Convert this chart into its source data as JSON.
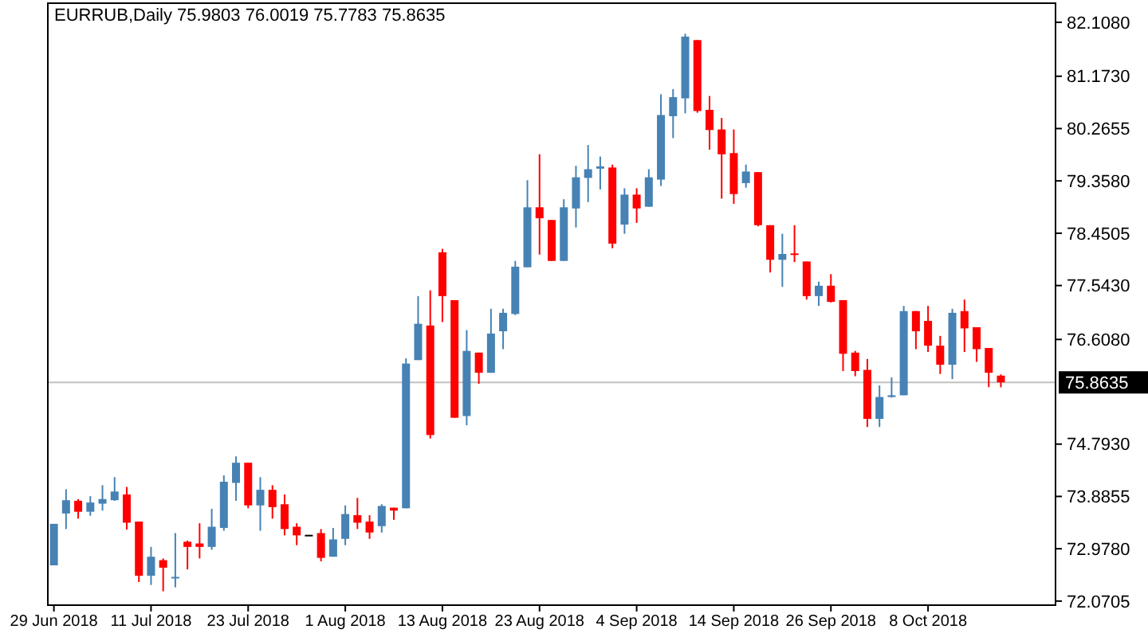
{
  "chart_data": {
    "type": "candlestick",
    "title": "EURRUB,Daily  75.9803 76.0019 75.7783 75.8635",
    "categories": [
      "29 Jun 2018",
      null,
      null,
      null,
      null,
      null,
      null,
      null,
      "11 Jul 2018",
      null,
      null,
      null,
      null,
      null,
      null,
      null,
      "23 Jul 2018",
      null,
      null,
      null,
      null,
      null,
      null,
      null,
      "1 Aug 2018",
      null,
      null,
      null,
      null,
      null,
      null,
      null,
      "13 Aug 2018",
      null,
      null,
      null,
      null,
      null,
      null,
      null,
      "23 Aug 2018",
      null,
      null,
      null,
      null,
      null,
      null,
      null,
      "4 Sep 2018",
      null,
      null,
      null,
      null,
      null,
      null,
      null,
      "14 Sep 2018",
      null,
      null,
      null,
      null,
      null,
      null,
      null,
      "26 Sep 2018",
      null,
      null,
      null,
      null,
      null,
      null,
      null,
      "8 Oct 2018",
      null,
      null,
      null,
      null,
      null,
      null
    ],
    "ohlc": [
      [
        72.69,
        73.41,
        72.69,
        73.41
      ],
      [
        73.59,
        74.01,
        73.32,
        73.82
      ],
      [
        73.81,
        73.84,
        73.5,
        73.62
      ],
      [
        73.62,
        73.89,
        73.55,
        73.78
      ],
      [
        73.76,
        74.08,
        73.64,
        73.84
      ],
      [
        73.82,
        74.22,
        73.81,
        73.97
      ],
      [
        73.92,
        74.05,
        73.31,
        73.43
      ],
      [
        73.45,
        73.45,
        72.4,
        72.51
      ],
      [
        72.51,
        73.01,
        72.35,
        72.84
      ],
      [
        72.78,
        72.81,
        72.24,
        72.65
      ],
      [
        72.47,
        73.25,
        72.31,
        72.49
      ],
      [
        73.1,
        73.12,
        72.62,
        73.01
      ],
      [
        73.07,
        73.42,
        72.81,
        73.01
      ],
      [
        73.01,
        73.67,
        72.96,
        73.36
      ],
      [
        73.34,
        74.25,
        73.29,
        74.14
      ],
      [
        74.12,
        74.58,
        73.81,
        74.47
      ],
      [
        74.47,
        74.47,
        73.68,
        73.73
      ],
      [
        73.73,
        74.22,
        73.29,
        74.0
      ],
      [
        74.0,
        74.08,
        73.5,
        73.7
      ],
      [
        73.75,
        73.92,
        73.21,
        73.32
      ],
      [
        73.36,
        73.42,
        73.04,
        73.21
      ],
      [
        73.22,
        73.22,
        73.22,
        73.22
      ],
      [
        73.25,
        73.32,
        72.76,
        72.82
      ],
      [
        72.84,
        73.34,
        72.84,
        73.14
      ],
      [
        73.15,
        73.73,
        73.04,
        73.58
      ],
      [
        73.56,
        73.86,
        73.32,
        73.43
      ],
      [
        73.45,
        73.56,
        73.15,
        73.26
      ],
      [
        73.37,
        73.75,
        73.26,
        73.72
      ],
      [
        73.69,
        73.69,
        73.48,
        73.64
      ],
      [
        73.68,
        76.28,
        73.68,
        76.19
      ],
      [
        76.25,
        77.36,
        76.25,
        76.88
      ],
      [
        76.85,
        77.46,
        74.89,
        74.95
      ],
      [
        78.12,
        78.18,
        76.91,
        77.36
      ],
      [
        77.29,
        77.29,
        75.25,
        75.25
      ],
      [
        75.28,
        76.77,
        75.12,
        76.41
      ],
      [
        76.38,
        76.38,
        75.84,
        76.03
      ],
      [
        76.03,
        77.14,
        76.03,
        76.71
      ],
      [
        76.75,
        77.14,
        76.44,
        77.07
      ],
      [
        77.05,
        77.97,
        77.03,
        77.87
      ],
      [
        77.86,
        79.37,
        77.86,
        78.9
      ],
      [
        78.9,
        79.82,
        78.08,
        78.71
      ],
      [
        78.68,
        78.68,
        77.97,
        77.97
      ],
      [
        77.97,
        79.04,
        77.97,
        78.9
      ],
      [
        78.88,
        79.62,
        78.55,
        79.42
      ],
      [
        79.41,
        79.98,
        78.99,
        79.56
      ],
      [
        79.57,
        79.78,
        79.21,
        79.61
      ],
      [
        79.59,
        79.64,
        78.19,
        78.27
      ],
      [
        78.6,
        79.23,
        78.44,
        79.12
      ],
      [
        79.12,
        79.23,
        78.63,
        78.88
      ],
      [
        78.91,
        79.56,
        78.91,
        79.42
      ],
      [
        79.38,
        80.86,
        79.27,
        80.5
      ],
      [
        80.48,
        80.95,
        80.1,
        80.81
      ],
      [
        80.79,
        81.91,
        80.53,
        81.86
      ],
      [
        81.8,
        81.8,
        80.54,
        80.57
      ],
      [
        80.59,
        80.83,
        79.9,
        80.24
      ],
      [
        80.25,
        80.45,
        79.05,
        79.82
      ],
      [
        79.84,
        80.25,
        78.96,
        79.13
      ],
      [
        79.32,
        79.64,
        79.24,
        79.52
      ],
      [
        79.51,
        79.51,
        78.57,
        78.59
      ],
      [
        78.59,
        78.59,
        77.77,
        77.99
      ],
      [
        77.99,
        78.44,
        77.52,
        78.09
      ],
      [
        78.1,
        78.59,
        77.95,
        78.08
      ],
      [
        77.96,
        77.96,
        77.3,
        77.36
      ],
      [
        77.36,
        77.61,
        77.19,
        77.54
      ],
      [
        77.54,
        77.74,
        77.25,
        77.26
      ],
      [
        77.29,
        77.29,
        76.06,
        76.36
      ],
      [
        76.38,
        76.41,
        75.97,
        76.06
      ],
      [
        76.08,
        76.27,
        75.09,
        75.23
      ],
      [
        75.23,
        75.81,
        75.09,
        75.61
      ],
      [
        75.61,
        75.95,
        75.6,
        75.64
      ],
      [
        75.64,
        77.19,
        75.64,
        77.1
      ],
      [
        77.1,
        77.1,
        76.44,
        76.75
      ],
      [
        76.93,
        77.19,
        76.39,
        76.5
      ],
      [
        76.5,
        76.67,
        76.01,
        76.17
      ],
      [
        76.17,
        77.14,
        75.92,
        77.07
      ],
      [
        77.1,
        77.3,
        76.39,
        76.8
      ],
      [
        76.82,
        76.82,
        76.22,
        76.44
      ],
      [
        76.46,
        76.46,
        75.78,
        76.03
      ],
      [
        75.9803,
        76.0019,
        75.7783,
        75.8635
      ]
    ],
    "colors": [
      "#4682b4",
      "#4682b4",
      "#ff0000",
      "#4682b4",
      "#4682b4",
      "#4682b4",
      "#ff0000",
      "#ff0000",
      "#4682b4",
      "#ff0000",
      "#4682b4",
      "#ff0000",
      "#ff0000",
      "#4682b4",
      "#4682b4",
      "#4682b4",
      "#ff0000",
      "#4682b4",
      "#ff0000",
      "#ff0000",
      "#ff0000",
      "#000000",
      "#ff0000",
      "#4682b4",
      "#4682b4",
      "#ff0000",
      "#ff0000",
      "#4682b4",
      "#ff0000",
      "#4682b4",
      "#4682b4",
      "#ff0000",
      "#ff0000",
      "#ff0000",
      "#4682b4",
      "#ff0000",
      "#4682b4",
      "#4682b4",
      "#4682b4",
      "#4682b4",
      "#ff0000",
      "#ff0000",
      "#4682b4",
      "#4682b4",
      "#4682b4",
      "#4682b4",
      "#ff0000",
      "#4682b4",
      "#ff0000",
      "#4682b4",
      "#4682b4",
      "#4682b4",
      "#4682b4",
      "#ff0000",
      "#ff0000",
      "#ff0000",
      "#ff0000",
      "#4682b4",
      "#ff0000",
      "#ff0000",
      "#4682b4",
      "#ff0000",
      "#ff0000",
      "#4682b4",
      "#ff0000",
      "#ff0000",
      "#ff0000",
      "#ff0000",
      "#4682b4",
      "#4682b4",
      "#4682b4",
      "#ff0000",
      "#ff0000",
      "#ff0000",
      "#4682b4",
      "#ff0000",
      "#ff0000",
      "#ff0000",
      "#ff0000"
    ],
    "ylim": [
      72.0,
      82.44
    ],
    "yticks": [
      {
        "value": 82.108,
        "label": "82.1080"
      },
      {
        "value": 81.173,
        "label": "81.1730"
      },
      {
        "value": 80.2655,
        "label": "80.2655"
      },
      {
        "value": 79.358,
        "label": "79.3580"
      },
      {
        "value": 78.4505,
        "label": "78.4505"
      },
      {
        "value": 77.543,
        "label": "77.5430"
      },
      {
        "value": 76.608,
        "label": "76.6080"
      },
      {
        "value": 74.793,
        "label": "74.7930"
      },
      {
        "value": 73.8855,
        "label": "73.8855"
      },
      {
        "value": 72.978,
        "label": "72.9780"
      },
      {
        "value": 72.0705,
        "label": "72.0705"
      }
    ],
    "ref_lines": [
      {
        "axis": "y",
        "value": 75.8635,
        "label": "75.8635",
        "color": "#c0c0c0"
      }
    ],
    "grid": false
  }
}
